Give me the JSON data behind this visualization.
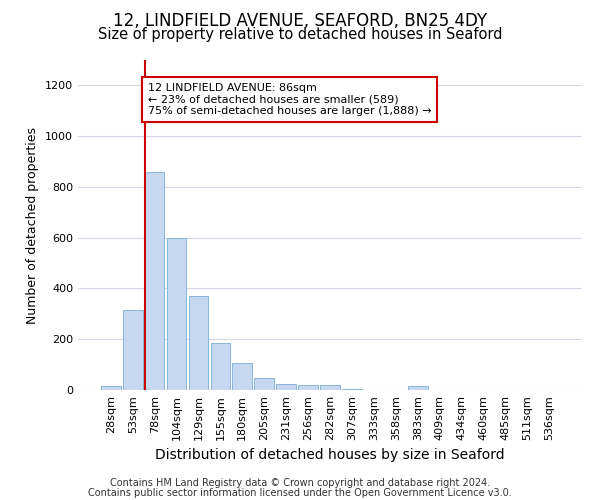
{
  "title": "12, LINDFIELD AVENUE, SEAFORD, BN25 4DY",
  "subtitle": "Size of property relative to detached houses in Seaford",
  "xlabel": "Distribution of detached houses by size in Seaford",
  "ylabel": "Number of detached properties",
  "bar_color": "#c5d8ef",
  "bar_edge_color": "#7bafd4",
  "background_color": "#ffffff",
  "grid_color": "#d0d8e8",
  "categories": [
    "28sqm",
    "53sqm",
    "78sqm",
    "104sqm",
    "129sqm",
    "155sqm",
    "180sqm",
    "205sqm",
    "231sqm",
    "256sqm",
    "282sqm",
    "307sqm",
    "333sqm",
    "358sqm",
    "383sqm",
    "409sqm",
    "434sqm",
    "460sqm",
    "485sqm",
    "511sqm",
    "536sqm"
  ],
  "values": [
    15,
    315,
    860,
    600,
    370,
    185,
    105,
    47,
    25,
    18,
    20,
    5,
    0,
    0,
    15,
    0,
    0,
    0,
    0,
    0,
    0
  ],
  "ylim": [
    0,
    1300
  ],
  "yticks": [
    0,
    200,
    400,
    600,
    800,
    1000,
    1200
  ],
  "marker_bar_index": 2,
  "marker_label": "12 LINDFIELD AVENUE: 86sqm",
  "marker_smaller": "← 23% of detached houses are smaller (589)",
  "marker_larger": "75% of semi-detached houses are larger (1,888) →",
  "marker_color": "#cc0000",
  "annotation_box_edgecolor": "#cc0000",
  "footnote_line1": "Contains HM Land Registry data © Crown copyright and database right 2024.",
  "footnote_line2": "Contains public sector information licensed under the Open Government Licence v3.0.",
  "title_fontsize": 12,
  "subtitle_fontsize": 10.5,
  "xlabel_fontsize": 10,
  "ylabel_fontsize": 9,
  "tick_fontsize": 8,
  "annot_fontsize": 8,
  "footnote_fontsize": 7
}
